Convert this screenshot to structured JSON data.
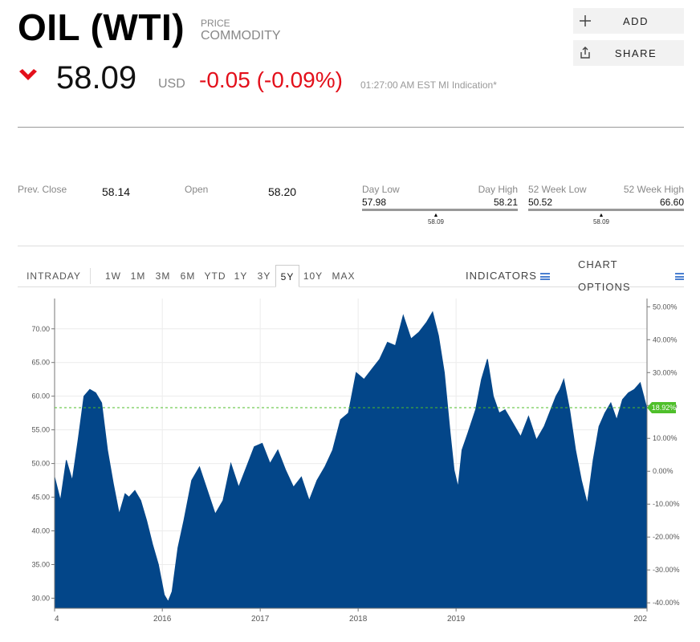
{
  "header": {
    "title": "OIL (WTI)",
    "type_line1": "PRICE",
    "type_line2": "COMMODITY",
    "add_label": "ADD",
    "share_label": "SHARE",
    "add_icon": "plus-icon",
    "share_icon": "share-icon"
  },
  "quote": {
    "direction_icon": "chevron-down-icon",
    "last": "58.09",
    "currency": "USD",
    "change": "-0.05 (-0.09%)",
    "time": "01:27:00 AM EST MI Indication*",
    "down_color": "#e3101b"
  },
  "stats": {
    "prev_close_label": "Prev. Close",
    "prev_close": "58.14",
    "open_label": "Open",
    "open": "58.20",
    "day_low_label": "Day Low",
    "day_low": "57.98",
    "day_high_label": "Day High",
    "day_high": "58.21",
    "day_marker": "58.09",
    "wk52_low_label": "52 Week Low",
    "wk52_low": "50.52",
    "wk52_high_label": "52 Week High",
    "wk52_high": "66.60",
    "wk52_marker": "58.09"
  },
  "tabs": {
    "intraday": "INTRADAY",
    "ranges": [
      "1W",
      "1M",
      "3M",
      "6M",
      "YTD",
      "1Y",
      "3Y",
      "5Y",
      "10Y",
      "MAX"
    ],
    "active": "5Y",
    "indicators": "INDICATORS",
    "chart_options": "CHART OPTIONS"
  },
  "chart_data": {
    "type": "area",
    "fill_color": "#034689",
    "reference_line_color": "#4fbf2b",
    "current_pct_label": "18.92%",
    "x_ticks": [
      "4",
      "2016",
      "2017",
      "2018",
      "2019",
      "202"
    ],
    "y_left_ticks": [
      "70.00",
      "65.00",
      "60.00",
      "55.00",
      "50.00",
      "45.00",
      "40.00",
      "35.00",
      "30.00"
    ],
    "y_right_ticks": [
      "50.00%",
      "40.00%",
      "30.00%",
      "20.00%",
      "10.00%",
      "0.00%",
      "-10.00%",
      "-20.00%",
      "-30.00%",
      "-40.00%"
    ],
    "ylim": [
      28.5,
      74.5
    ],
    "xlim": [
      2014.9,
      2020.95
    ],
    "reference_value": 58.3,
    "x": [
      2014.9,
      2014.96,
      2015.02,
      2015.08,
      2015.14,
      2015.2,
      2015.26,
      2015.32,
      2015.38,
      2015.44,
      2015.5,
      2015.56,
      2015.62,
      2015.66,
      2015.72,
      2015.78,
      2015.84,
      2015.9,
      2015.96,
      2016.02,
      2016.06,
      2016.1,
      2016.16,
      2016.22,
      2016.3,
      2016.38,
      2016.46,
      2016.54,
      2016.62,
      2016.7,
      2016.78,
      2016.86,
      2016.94,
      2017.02,
      2017.1,
      2017.18,
      2017.26,
      2017.34,
      2017.42,
      2017.5,
      2017.58,
      2017.66,
      2017.74,
      2017.82,
      2017.9,
      2017.98,
      2018.06,
      2018.14,
      2018.22,
      2018.3,
      2018.38,
      2018.46,
      2018.54,
      2018.62,
      2018.7,
      2018.76,
      2018.82,
      2018.88,
      2018.94,
      2018.98,
      2019.02,
      2019.06,
      2019.12,
      2019.2,
      2019.26,
      2019.32,
      2019.38,
      2019.44,
      2019.5,
      2019.58,
      2019.66,
      2019.74,
      2019.82,
      2019.9,
      2019.98,
      2020.02,
      2020.06,
      2020.1,
      2020.16,
      2020.22,
      2020.28,
      2020.34,
      2020.4,
      2020.46,
      2020.52,
      2020.58,
      2020.64,
      2020.7,
      2020.76,
      2020.82,
      2020.88,
      2020.95
    ],
    "values": [
      48.0,
      44.5,
      50.5,
      47.5,
      53.5,
      60.0,
      61.0,
      60.5,
      59.0,
      52.0,
      47.0,
      42.5,
      45.5,
      45.0,
      46.0,
      44.5,
      41.5,
      38.0,
      35.0,
      30.5,
      29.5,
      31.0,
      37.5,
      41.5,
      47.5,
      49.5,
      46.0,
      42.5,
      44.5,
      50.0,
      46.5,
      49.5,
      52.5,
      53.0,
      50.0,
      52.0,
      49.0,
      46.5,
      48.0,
      44.5,
      47.5,
      49.5,
      52.0,
      56.5,
      57.5,
      63.5,
      62.5,
      64.0,
      65.5,
      68.0,
      67.5,
      72.0,
      68.5,
      69.5,
      71.0,
      72.5,
      69.0,
      63.5,
      54.5,
      49.0,
      46.5,
      52.0,
      54.5,
      58.0,
      62.5,
      65.5,
      60.0,
      57.5,
      58.0,
      56.0,
      54.0,
      57.0,
      53.5,
      55.5,
      58.5,
      60.0,
      61.0,
      62.5,
      58.0,
      52.0,
      47.5,
      44.0,
      50.5,
      55.5,
      57.5,
      59.0,
      56.5,
      59.5,
      60.5,
      61.0,
      62.0,
      58.1
    ]
  }
}
